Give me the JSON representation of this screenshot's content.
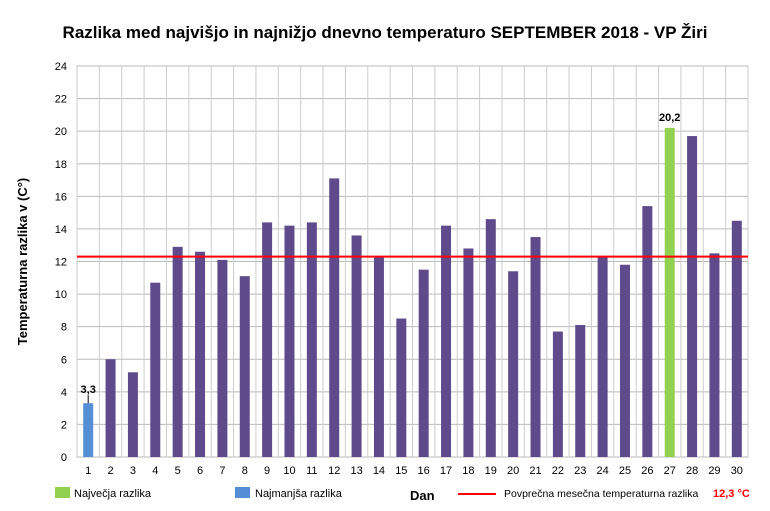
{
  "chart_data": {
    "type": "bar",
    "title": "Razlika med najvišjo in najnižjo dnevno temperaturo SEPTEMBER 2018 - VP Žiri",
    "xlabel": "Dan",
    "ylabel": "Temperaturna razlika v (C°)",
    "ylim": [
      0,
      24
    ],
    "yticks": [
      0,
      2,
      4,
      6,
      8,
      10,
      12,
      14,
      16,
      18,
      20,
      22,
      24
    ],
    "grid": true,
    "categories": [
      "1",
      "2",
      "3",
      "4",
      "5",
      "6",
      "7",
      "8",
      "9",
      "10",
      "11",
      "12",
      "13",
      "14",
      "15",
      "16",
      "17",
      "18",
      "19",
      "20",
      "21",
      "22",
      "23",
      "24",
      "25",
      "26",
      "27",
      "28",
      "29",
      "30"
    ],
    "values": [
      3.3,
      6.0,
      5.2,
      10.7,
      12.9,
      12.6,
      12.1,
      11.1,
      14.4,
      14.2,
      14.4,
      17.1,
      13.6,
      12.3,
      8.5,
      11.5,
      14.2,
      12.8,
      14.6,
      11.4,
      13.5,
      7.7,
      8.1,
      12.3,
      11.8,
      15.4,
      20.2,
      19.7,
      12.5,
      14.5
    ],
    "max_index": 26,
    "min_index": 0,
    "max_label": "20,2",
    "min_label": "3,3",
    "average": 12.3,
    "colors": {
      "normal": "#5f4b8b",
      "max": "#92d050",
      "min": "#558ed5",
      "average": "#ff0000"
    },
    "legend": {
      "max": "Največja razlika",
      "min": "Najmanjša razlika",
      "average": "Povprečna mesečna temperaturna razlika",
      "average_value": "12,3 °C"
    }
  }
}
